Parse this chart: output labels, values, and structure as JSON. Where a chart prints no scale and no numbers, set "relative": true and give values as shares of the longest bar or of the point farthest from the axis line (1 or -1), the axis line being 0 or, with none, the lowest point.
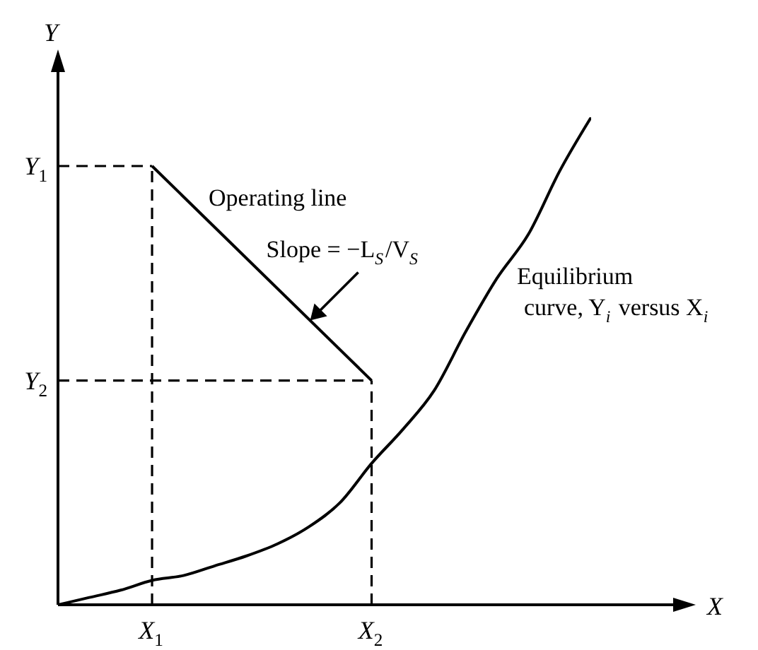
{
  "chart_data": {
    "type": "line",
    "relative": true,
    "xlabel": "X",
    "ylabel": "Y",
    "marker": "none",
    "line_style": "solid",
    "categories": [
      null,
      null,
      null,
      "X$_{1}$",
      null,
      null,
      null,
      null,
      null,
      null,
      "X$_{2}$",
      null,
      null,
      null,
      null,
      null,
      null,
      null
    ],
    "series": [
      {
        "name": "Operating line",
        "color": "#000000",
        "values": [
          null,
          null,
          null,
          0.9,
          null,
          null,
          null,
          null,
          null,
          null,
          0.46,
          null,
          null,
          null,
          null,
          null,
          null,
          null
        ]
      },
      {
        "name": "Equilibrium curve, Y$_{i}$ versus X$_{i}$",
        "color": "#000000",
        "values": [
          0,
          0.015,
          0.03,
          0.05,
          0.06,
          0.08,
          0.1,
          0.125,
          0.16,
          0.21,
          0.29,
          0.36,
          0.44,
          0.56,
          0.67,
          0.76,
          0.89,
          1
        ]
      }
    ],
    "ref_lines": [
      {
        "axis": "x",
        "value": "X$_{1}$",
        "line_style": "dashed"
      },
      {
        "axis": "x",
        "value": "X$_{2}$",
        "line_style": "dashed"
      },
      {
        "axis": "y",
        "value": 0.9,
        "label": "Y$_{1}$",
        "line_style": "dashed"
      },
      {
        "axis": "y",
        "value": 0.46,
        "label": "Y$_{2}$",
        "line_style": "dashed"
      }
    ],
    "annotations": [
      "Slope = −L$_{S}$/V$_{S}$"
    ]
  }
}
